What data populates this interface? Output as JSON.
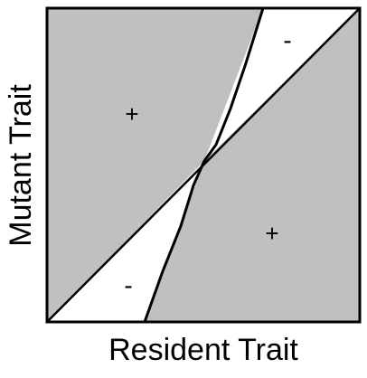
{
  "figure": {
    "type": "pairwise-invasibility-plot",
    "x_label": "Resident Trait",
    "y_label": "Mutant Trait",
    "colors": {
      "positive_region": "#c0c0c0",
      "negative_region": "#ffffff",
      "lines": "#000000",
      "frame": "#000000"
    },
    "regions": [
      {
        "id": "upper-left",
        "sign": "+"
      },
      {
        "id": "upper-right",
        "sign": "-"
      },
      {
        "id": "lower-right",
        "sign": "+"
      },
      {
        "id": "lower-left",
        "sign": "-"
      }
    ]
  }
}
